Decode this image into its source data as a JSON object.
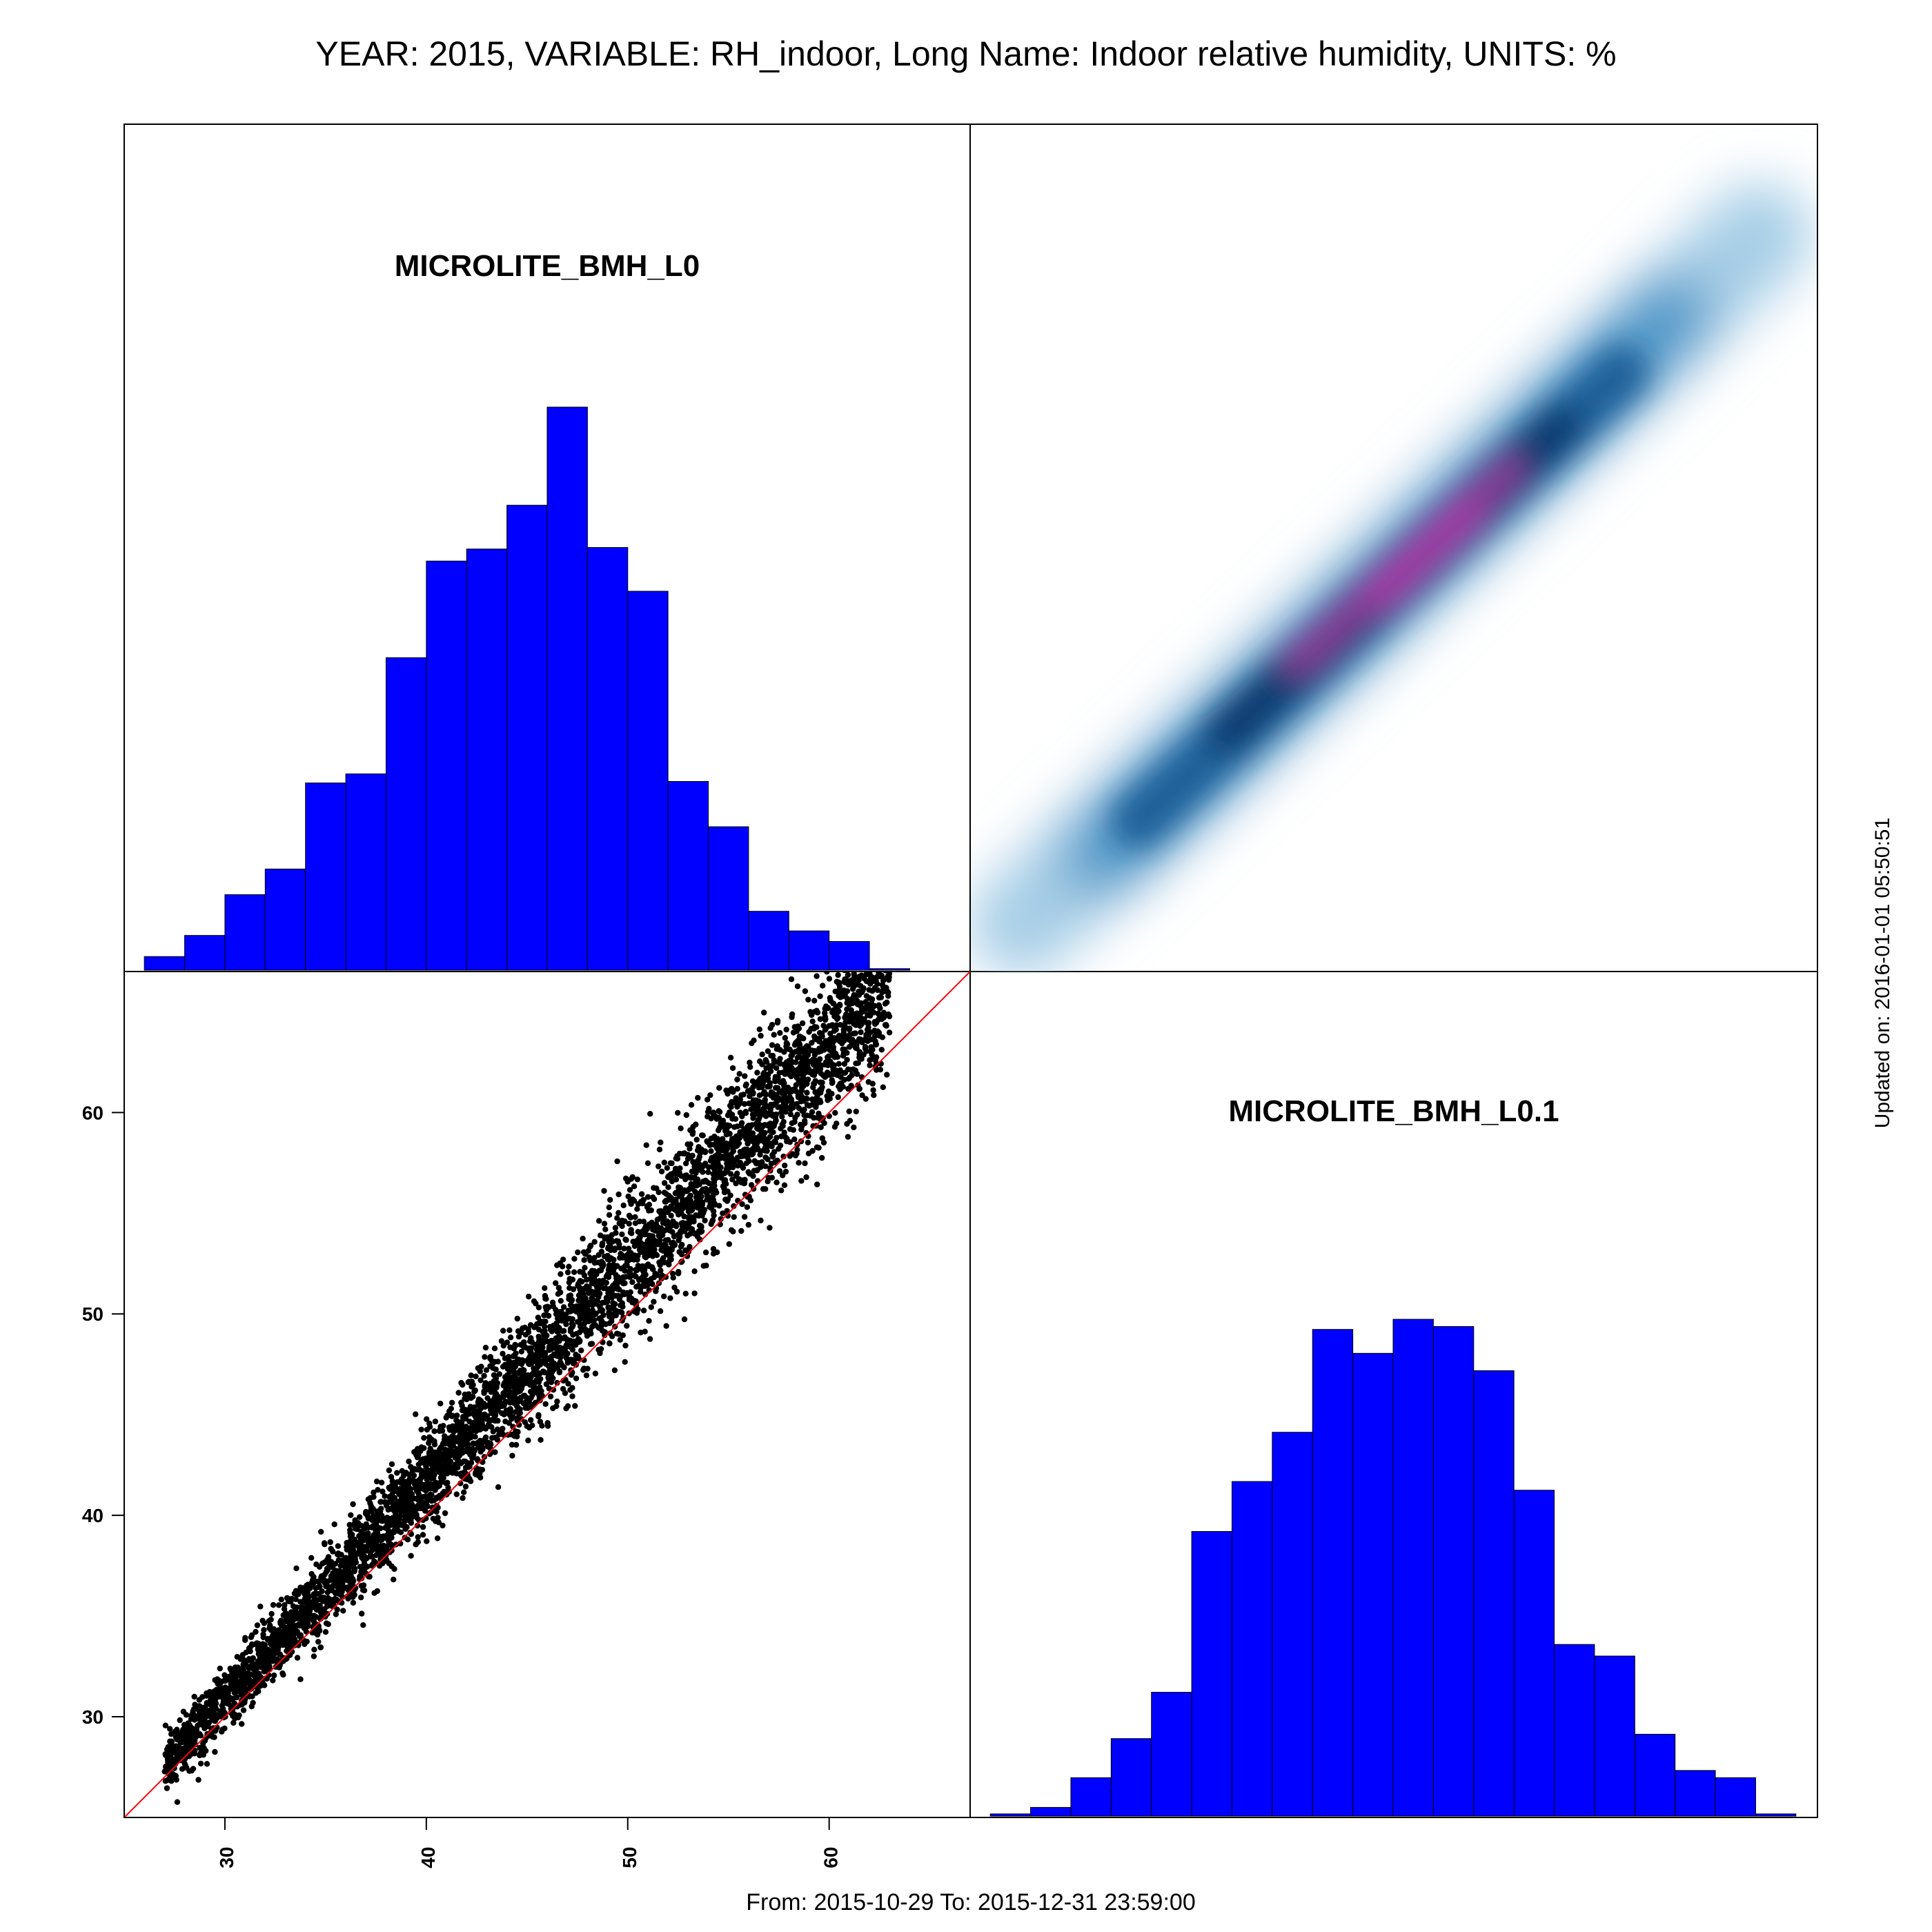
{
  "title": "YEAR: 2015, VARIABLE: RH_indoor, Long Name: Indoor relative humidity, UNITS: %",
  "footer": "From: 2015-10-29 To: 2015-12-31 23:59:00",
  "updated": "Updated on: 2016-01-01 05:50:51",
  "colors": {
    "bar": "#0000ff",
    "scatter": "#000000",
    "diag_line": "#ff0000",
    "density_high": "#9b2d9b",
    "density_mid": "#08306b",
    "density_low": "#6baed6"
  },
  "chart_data": [
    {
      "type": "bar",
      "panel": "top-left",
      "title": "MICROLITE_BMH_L0",
      "bin_edges": [
        26,
        28,
        30,
        32,
        34,
        36,
        38,
        40,
        42,
        44,
        46,
        48,
        50,
        52,
        54,
        56,
        58,
        60,
        62,
        64
      ],
      "values": [
        9,
        23,
        50,
        67,
        124,
        130,
        207,
        271,
        279,
        308,
        373,
        280,
        251,
        125,
        95,
        39,
        26,
        19,
        1
      ],
      "y_label_shown": false
    },
    {
      "type": "heatmap",
      "panel": "top-right",
      "description_values": {
        "x_range": [
          26,
          65
        ],
        "y_range": [
          26,
          65
        ],
        "peak": [
          47,
          47
        ]
      }
    },
    {
      "type": "scatter",
      "panel": "bottom-left",
      "x_ticks": [
        30,
        40,
        50,
        60
      ],
      "y_ticks": [
        30,
        40,
        50,
        60
      ],
      "xlim": [
        25,
        67
      ],
      "ylim": [
        25,
        67
      ],
      "reference_line": "y = x",
      "point_count_estimate": 5000
    },
    {
      "type": "bar",
      "panel": "bottom-right",
      "title": "MICROLITE_BMH_L0.1",
      "bin_edges": [
        26,
        28,
        30,
        32,
        34,
        36,
        38,
        40,
        42,
        44,
        46,
        48,
        50,
        52,
        54,
        56,
        58,
        60,
        62,
        64,
        66
      ],
      "values": [
        3,
        12,
        53,
        107,
        171,
        393,
        462,
        530,
        672,
        639,
        686,
        676,
        615,
        450,
        237,
        221,
        113,
        63,
        53,
        3
      ],
      "y_label_shown": false
    }
  ]
}
